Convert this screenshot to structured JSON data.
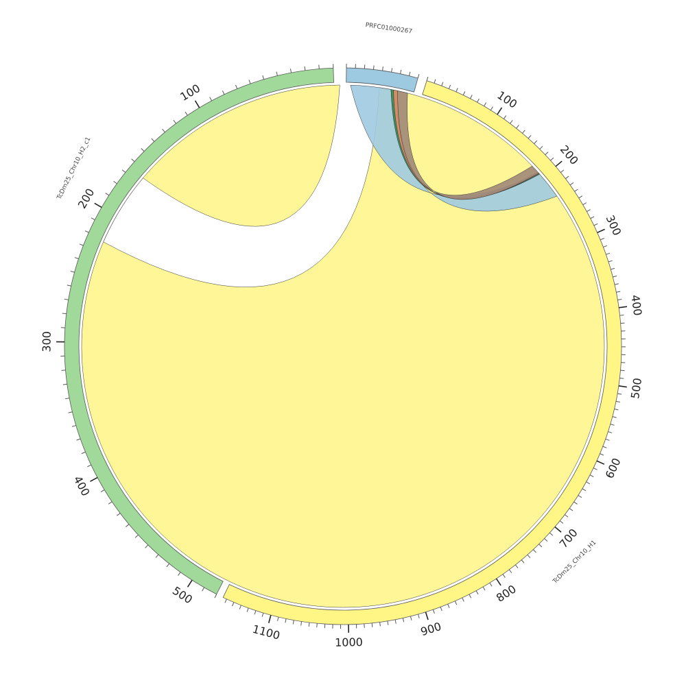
{
  "diagram": {
    "type": "circos",
    "chromosomes": [
      {
        "id": "PRFC01000267",
        "label": "PRFC01000267",
        "length": 80,
        "color": "#9ecae1",
        "tick_labels": []
      },
      {
        "id": "H1",
        "label": "TcDm25_Chr10_H1",
        "length": 1165,
        "color": "#fff685",
        "tick_labels": [
          "100",
          "200",
          "300",
          "400",
          "500",
          "600",
          "700",
          "800",
          "900",
          "1000",
          "1100"
        ]
      },
      {
        "id": "H2",
        "label": "TcDm25_Chr10_H2_c1",
        "length": 520,
        "color": "#a1d99b",
        "tick_labels": [
          "100",
          "200",
          "300",
          "400",
          "500"
        ]
      }
    ],
    "links": [
      {
        "color": "#fff685",
        "from": {
          "chr": "H2",
          "start": 165,
          "end": 222
        },
        "to": {
          "chr": "H2",
          "start": 0,
          "end": 0
        },
        "note": ""
      },
      {
        "color": "#9ecae1",
        "from": {
          "chr": "PRFC01000267",
          "start": 5,
          "end": 53
        },
        "to": {
          "chr": "H1",
          "start": 192,
          "end": 232
        }
      },
      {
        "color": "#2e8b57",
        "from": {
          "chr": "PRFC01000267",
          "start": 53,
          "end": 56
        },
        "to": {
          "chr": "H1",
          "start": 192,
          "end": 194
        }
      },
      {
        "color": "#cd8162",
        "from": {
          "chr": "PRFC01000267",
          "start": 56,
          "end": 61
        },
        "to": {
          "chr": "H1",
          "start": 190,
          "end": 193
        }
      },
      {
        "color": "#a08878",
        "from": {
          "chr": "PRFC01000267",
          "start": 61,
          "end": 73
        },
        "to": {
          "chr": "H1",
          "start": 179,
          "end": 192
        }
      }
    ]
  }
}
